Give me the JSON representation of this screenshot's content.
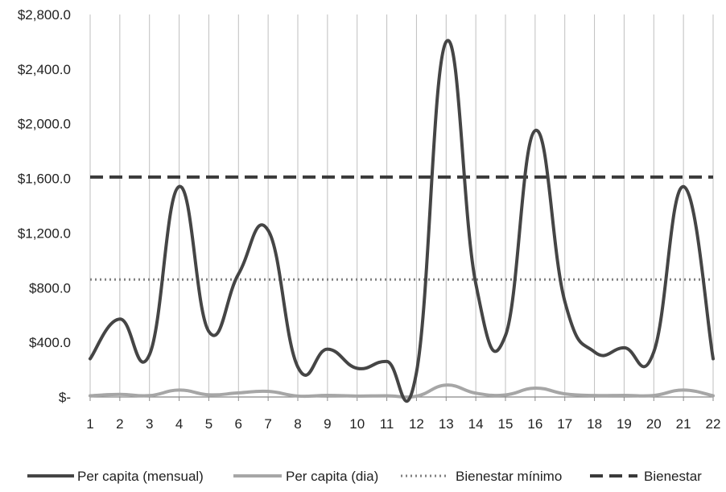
{
  "chart_data": {
    "type": "line",
    "categories": [
      "1",
      "2",
      "3",
      "4",
      "5",
      "6",
      "7",
      "8",
      "9",
      "10",
      "11",
      "12",
      "13",
      "14",
      "15",
      "16",
      "17",
      "18",
      "19",
      "20",
      "21",
      "22"
    ],
    "y_tick_labels": [
      "$-",
      "$400.0",
      "$800.0",
      "$1,200.0",
      "$1,600.0",
      "$2,000.0",
      "$2,400.0",
      "$2,800.0"
    ],
    "y_ticks": [
      0,
      400,
      800,
      1200,
      1600,
      2000,
      2400,
      2800
    ],
    "ylim": [
      0,
      2800
    ],
    "grid": "vertical",
    "legend_position": "bottom",
    "series": [
      {
        "name": "Per capita (mensual)",
        "style": "solid",
        "color": "#454545",
        "values": [
          280,
          570,
          310,
          1540,
          480,
          900,
          1220,
          220,
          350,
          210,
          260,
          180,
          2600,
          830,
          450,
          1950,
          700,
          330,
          360,
          330,
          1540,
          280
        ]
      },
      {
        "name": "Per capita (dia)",
        "style": "solid",
        "color": "#a6a6a6",
        "values": [
          9,
          19,
          10,
          51,
          16,
          30,
          41,
          7,
          12,
          7,
          9,
          6,
          87,
          28,
          15,
          65,
          23,
          11,
          12,
          11,
          51,
          9
        ]
      },
      {
        "name": "Bienestar mínimo",
        "style": "dotted",
        "color": "#7f7f7f",
        "values": [
          860,
          860,
          860,
          860,
          860,
          860,
          860,
          860,
          860,
          860,
          860,
          860,
          860,
          860,
          860,
          860,
          860,
          860,
          860,
          860,
          860,
          860
        ]
      },
      {
        "name": "Bienestar",
        "style": "dashed",
        "color": "#3a3a3a",
        "values": [
          1610,
          1610,
          1610,
          1610,
          1610,
          1610,
          1610,
          1610,
          1610,
          1610,
          1610,
          1610,
          1610,
          1610,
          1610,
          1610,
          1610,
          1610,
          1610,
          1610,
          1610,
          1610
        ]
      }
    ]
  }
}
